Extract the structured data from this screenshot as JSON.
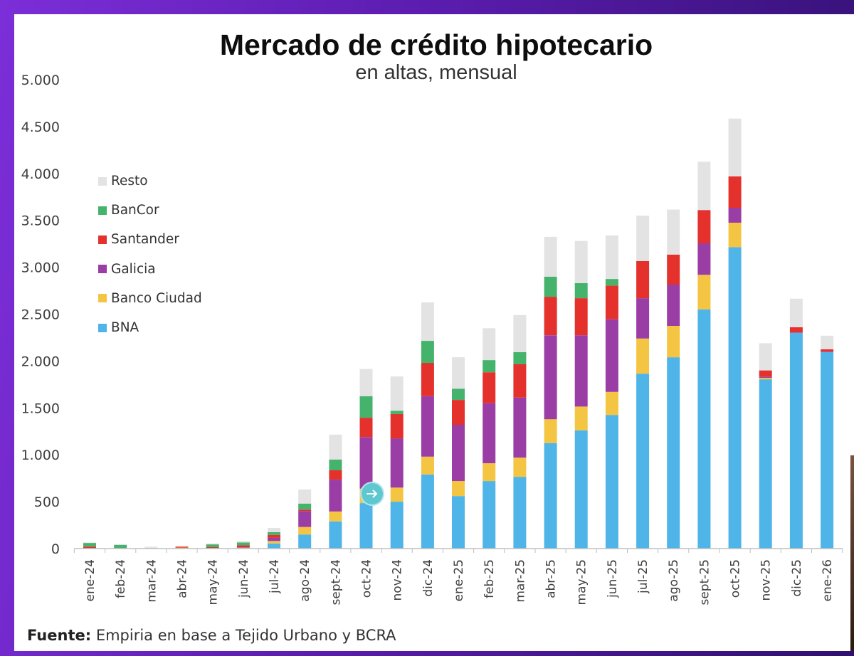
{
  "theme": {
    "frame_color": "#6a24c6",
    "panel_color": "#ffffff",
    "text_color": "#404040",
    "axis_color": "#bfbfbf"
  },
  "chart_data": {
    "type": "bar",
    "stacked": true,
    "title": "Mercado de crédito hipotecario",
    "subtitle": "en altas, mensual",
    "ylim": [
      0,
      5000
    ],
    "yticks": [
      0,
      500,
      1000,
      1500,
      2000,
      2500,
      3000,
      3500,
      4000,
      4500,
      5000
    ],
    "ytick_labels": [
      "0",
      "500",
      "1.000",
      "1.500",
      "2.000",
      "2.500",
      "3.000",
      "3.500",
      "4.000",
      "4.500",
      "5.000"
    ],
    "grid": false,
    "legend_position": "top-left",
    "categories": [
      "ene-24",
      "feb-24",
      "mar-24",
      "abr-24",
      "may-24",
      "jun-24",
      "jul-24",
      "ago-24",
      "sept-24",
      "oct-24",
      "nov-24",
      "dic-24",
      "ene-25",
      "feb-25",
      "mar-25",
      "abr-25",
      "may-25",
      "jun-25",
      "jul-25",
      "ago-25",
      "sept-25",
      "oct-25",
      "nov-25",
      "dic-25",
      "ene-26"
    ],
    "series": [
      {
        "name": "BNA",
        "color": "#4fb4e8",
        "values": [
          0,
          0,
          0,
          0,
          0,
          0,
          55,
          150,
          290,
          485,
          500,
          790,
          560,
          720,
          765,
          1125,
          1260,
          1425,
          1865,
          2040,
          2550,
          3215,
          1805,
          2300,
          2095
        ]
      },
      {
        "name": "Banco Ciudad",
        "color": "#f4c542",
        "values": [
          0,
          0,
          0,
          10,
          0,
          10,
          25,
          80,
          105,
          155,
          150,
          190,
          160,
          190,
          205,
          255,
          255,
          245,
          375,
          335,
          370,
          260,
          15,
          0,
          0
        ]
      },
      {
        "name": "Galicia",
        "color": "#9a3ea5",
        "values": [
          5,
          0,
          0,
          0,
          5,
          5,
          35,
          170,
          340,
          550,
          525,
          645,
          600,
          640,
          640,
          895,
          760,
          775,
          430,
          440,
          335,
          160,
          10,
          5,
          5
        ]
      },
      {
        "name": "Santander",
        "color": "#e5312b",
        "values": [
          15,
          5,
          5,
          10,
          10,
          20,
          30,
          15,
          100,
          205,
          260,
          355,
          265,
          330,
          355,
          410,
          395,
          360,
          395,
          320,
          355,
          335,
          70,
          55,
          25
        ]
      },
      {
        "name": "BanCor",
        "color": "#45b36b",
        "values": [
          40,
          35,
          0,
          0,
          30,
          30,
          30,
          65,
          115,
          230,
          35,
          235,
          120,
          130,
          130,
          215,
          160,
          70,
          0,
          0,
          0,
          0,
          0,
          0,
          0
        ]
      },
      {
        "name": "Resto",
        "color": "#e3e3e3",
        "values": [
          5,
          5,
          15,
          10,
          10,
          15,
          45,
          150,
          265,
          290,
          365,
          410,
          335,
          340,
          395,
          425,
          450,
          465,
          485,
          480,
          515,
          615,
          290,
          305,
          145
        ]
      }
    ]
  },
  "source": {
    "label": "Fuente:",
    "text": "Empiria en base a Tejido Urbano y BCRA"
  },
  "overlay": {
    "icon": "arrow-right-circle-icon",
    "color": "#5ec8d0"
  }
}
